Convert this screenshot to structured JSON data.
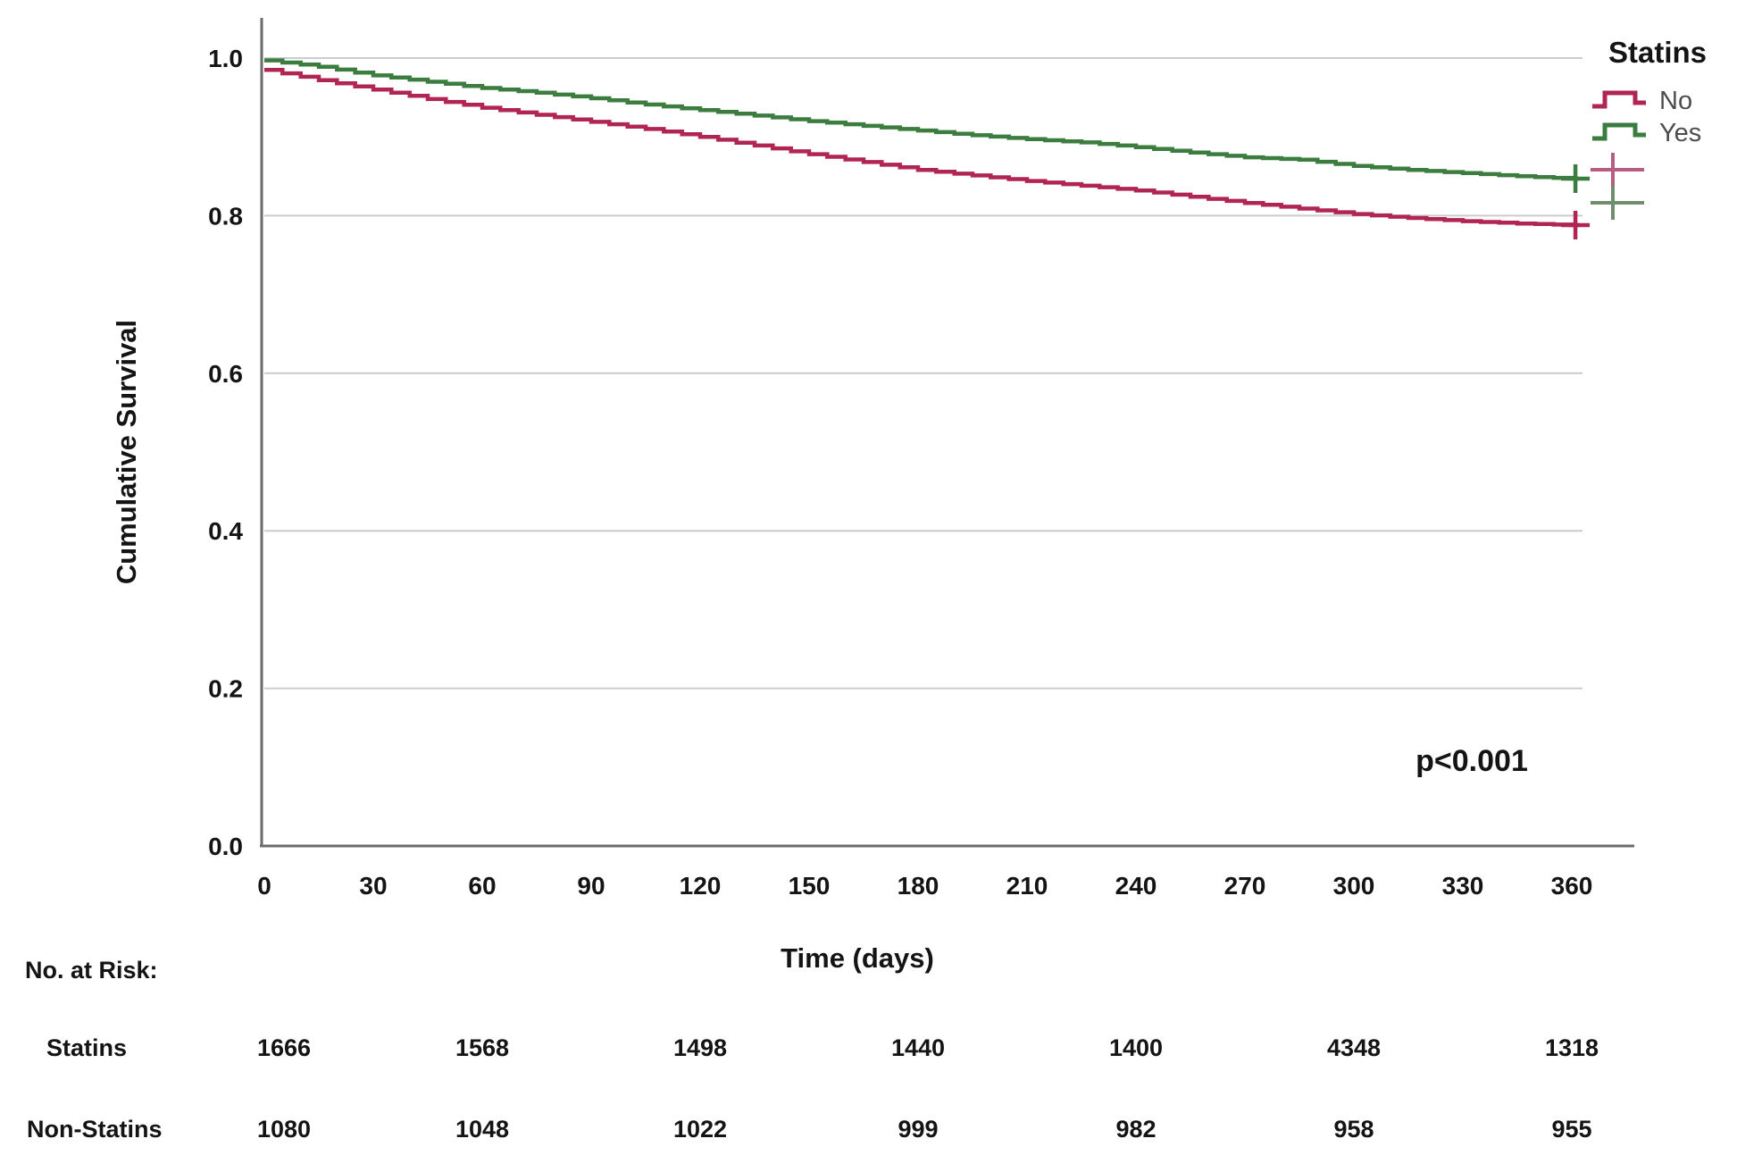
{
  "chart_data": {
    "type": "line",
    "subtype": "kaplan-meier-step",
    "title": "",
    "xlabel": "Time (days)",
    "ylabel": "Cumulative Survival",
    "xlim": [
      0,
      360
    ],
    "ylim": [
      0.0,
      1.0
    ],
    "grid": "horizontal",
    "x_ticks": [
      {
        "label": "0",
        "value": 0
      },
      {
        "label": "30",
        "value": 30
      },
      {
        "label": "60",
        "value": 60
      },
      {
        "label": "90",
        "value": 90
      },
      {
        "label": "120",
        "value": 120
      },
      {
        "label": "150",
        "value": 150
      },
      {
        "label": "180",
        "value": 180
      },
      {
        "label": "210",
        "value": 210
      },
      {
        "label": "240",
        "value": 240
      },
      {
        "label": "270",
        "value": 270
      },
      {
        "label": "300",
        "value": 300
      },
      {
        "label": "330",
        "value": 330
      },
      {
        "label": "360",
        "value": 360
      }
    ],
    "y_ticks": [
      {
        "label": "1.0",
        "value": 1.0
      },
      {
        "label": "0.8",
        "value": 0.8
      },
      {
        "label": "0.6",
        "value": 0.6
      },
      {
        "label": "0.4",
        "value": 0.4
      },
      {
        "label": "0.2",
        "value": 0.2
      },
      {
        "label": "0.0",
        "value": 0.0
      }
    ],
    "series": [
      {
        "name": "No",
        "color": "#b02551",
        "censor_at_end": true,
        "x": [
          0,
          15,
          30,
          45,
          60,
          75,
          90,
          105,
          120,
          135,
          150,
          165,
          180,
          195,
          210,
          225,
          240,
          255,
          270,
          285,
          300,
          315,
          330,
          345,
          360
        ],
        "y": [
          0.985,
          0.972,
          0.96,
          0.948,
          0.937,
          0.928,
          0.919,
          0.91,
          0.9,
          0.889,
          0.878,
          0.868,
          0.858,
          0.851,
          0.844,
          0.838,
          0.832,
          0.824,
          0.816,
          0.809,
          0.802,
          0.797,
          0.793,
          0.79,
          0.788
        ]
      },
      {
        "name": "Yes",
        "color": "#3b7c3f",
        "censor_at_end": true,
        "x": [
          0,
          15,
          30,
          45,
          60,
          75,
          90,
          105,
          120,
          135,
          150,
          165,
          180,
          195,
          210,
          225,
          240,
          255,
          270,
          285,
          300,
          315,
          330,
          345,
          360
        ],
        "y": [
          0.997,
          0.989,
          0.978,
          0.97,
          0.962,
          0.956,
          0.949,
          0.941,
          0.934,
          0.927,
          0.92,
          0.914,
          0.908,
          0.902,
          0.897,
          0.893,
          0.887,
          0.88,
          0.874,
          0.871,
          0.863,
          0.858,
          0.854,
          0.85,
          0.847
        ]
      }
    ],
    "p_value": "p<0.001"
  },
  "legend": {
    "title": "Statins",
    "position": "right-top",
    "entries": [
      {
        "label": "No",
        "type": "step-line",
        "color": "#b02551"
      },
      {
        "label": "Yes",
        "type": "step-line",
        "color": "#3b7c3f"
      },
      {
        "label": "",
        "type": "censor-cross",
        "color": "#b85c84"
      },
      {
        "label": "",
        "type": "censor-cross",
        "color": "#6f8d6f"
      }
    ]
  },
  "risk_table": {
    "heading": "No. at Risk:",
    "time_points": [
      0,
      60,
      120,
      180,
      240,
      300,
      360
    ],
    "rows": [
      {
        "label": "Statins",
        "values": [
          "1666",
          "1568",
          "1498",
          "1440",
          "1400",
          "4348",
          "1318"
        ]
      },
      {
        "label": "Non-Statins",
        "values": [
          "1080",
          "1048",
          "1022",
          "999",
          "982",
          "958",
          "955"
        ]
      }
    ]
  }
}
